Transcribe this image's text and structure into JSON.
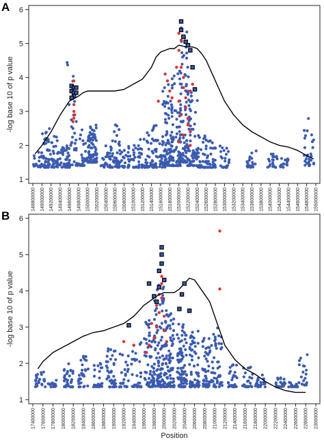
{
  "colors": {
    "snp": "#3a5bb0",
    "highlight": "#e03030",
    "line": "#000000",
    "axis": "#222222"
  },
  "chart_data": [
    {
      "panel": "A",
      "type": "scatter",
      "ylabel": "-log base 10 of p value",
      "xlabel": "",
      "ylim": [
        1,
        6
      ],
      "xlim": [
        148800000,
        155000000
      ],
      "yticks": [
        1,
        2,
        3,
        4,
        5,
        6
      ],
      "xticks": [
        "148800000",
        "149000000",
        "149200000",
        "149400000",
        "149600000",
        "149800000",
        "150000000",
        "150200000",
        "150400000",
        "150600000",
        "150800000",
        "151000000",
        "151200000",
        "151400000",
        "151600000",
        "151800000",
        "152000000",
        "152200000",
        "152400000",
        "152600000",
        "152800000",
        "153000000",
        "153200000",
        "153400000",
        "153600000",
        "153800000",
        "154000000",
        "154200000",
        "154400000",
        "154600000",
        "154800000",
        "155000000"
      ],
      "line": {
        "x": [
          148850000,
          149000000,
          149200000,
          149400000,
          149600000,
          149800000,
          149900000,
          150000000,
          150200000,
          150400000,
          150600000,
          150800000,
          151000000,
          151200000,
          151400000,
          151500000,
          151600000,
          151700000,
          151800000,
          151900000,
          152000000,
          152100000,
          152200000,
          152300000,
          152400000,
          152500000,
          152600000,
          152700000,
          152800000,
          152900000,
          153000000,
          153200000,
          153400000,
          153600000,
          153800000,
          154000000,
          154200000,
          154400000,
          154600000,
          154800000,
          154950000
        ],
        "y": [
          1.75,
          2.0,
          2.4,
          2.9,
          3.3,
          3.45,
          3.55,
          3.6,
          3.6,
          3.6,
          3.6,
          3.65,
          3.8,
          3.95,
          4.3,
          4.6,
          4.75,
          4.8,
          4.85,
          4.85,
          4.95,
          4.92,
          4.9,
          4.9,
          4.85,
          4.7,
          4.5,
          4.2,
          3.9,
          3.6,
          3.3,
          2.9,
          2.6,
          2.4,
          2.25,
          2.1,
          2.0,
          1.95,
          1.85,
          1.7,
          1.6
        ]
      },
      "clusters": [
        {
          "x": 148900000,
          "n": 20,
          "ymin": 1.35,
          "ymax": 1.8
        },
        {
          "x": 149100000,
          "n": 45,
          "ymin": 1.35,
          "ymax": 2.5
        },
        {
          "x": 149300000,
          "n": 30,
          "ymin": 1.35,
          "ymax": 2.3
        },
        {
          "x": 149500000,
          "n": 35,
          "ymin": 1.35,
          "ymax": 2.0
        },
        {
          "x": 149650000,
          "n": 30,
          "ymin": 1.4,
          "ymax": 4.5
        },
        {
          "x": 149850000,
          "n": 30,
          "ymin": 1.4,
          "ymax": 2.5
        },
        {
          "x": 150100000,
          "n": 90,
          "ymin": 1.5,
          "ymax": 2.6
        },
        {
          "x": 150400000,
          "n": 25,
          "ymin": 1.35,
          "ymax": 2.0
        },
        {
          "x": 150600000,
          "n": 40,
          "ymin": 1.35,
          "ymax": 2.7
        },
        {
          "x": 150800000,
          "n": 20,
          "ymin": 1.35,
          "ymax": 2.0
        },
        {
          "x": 151000000,
          "n": 25,
          "ymin": 1.35,
          "ymax": 2.1
        },
        {
          "x": 151200000,
          "n": 30,
          "ymin": 1.35,
          "ymax": 2.4
        },
        {
          "x": 151400000,
          "n": 40,
          "ymin": 1.35,
          "ymax": 2.7
        },
        {
          "x": 151600000,
          "n": 25,
          "ymin": 1.35,
          "ymax": 2.2
        },
        {
          "x": 151750000,
          "n": 80,
          "ymin": 1.4,
          "ymax": 4.0
        },
        {
          "x": 151950000,
          "n": 70,
          "ymin": 1.4,
          "ymax": 4.3
        },
        {
          "x": 152100000,
          "n": 90,
          "ymin": 1.5,
          "ymax": 5.5
        },
        {
          "x": 152300000,
          "n": 60,
          "ymin": 1.4,
          "ymax": 4.0
        },
        {
          "x": 152500000,
          "n": 35,
          "ymin": 1.35,
          "ymax": 2.3
        },
        {
          "x": 152700000,
          "n": 30,
          "ymin": 1.35,
          "ymax": 2.2
        },
        {
          "x": 153000000,
          "n": 25,
          "ymin": 1.35,
          "ymax": 2.0
        },
        {
          "x": 153600000,
          "n": 20,
          "ymin": 1.35,
          "ymax": 1.9
        },
        {
          "x": 154050000,
          "n": 20,
          "ymin": 1.35,
          "ymax": 1.8
        },
        {
          "x": 154300000,
          "n": 15,
          "ymin": 1.35,
          "ymax": 1.7
        },
        {
          "x": 154850000,
          "n": 30,
          "ymin": 1.4,
          "ymax": 2.8
        }
      ],
      "red_points": [
        {
          "x": 149700000,
          "y": 3.2
        },
        {
          "x": 149700000,
          "y": 3.0
        },
        {
          "x": 149700000,
          "y": 2.8
        },
        {
          "x": 149720000,
          "y": 2.9
        },
        {
          "x": 149680000,
          "y": 2.7
        },
        {
          "x": 149700000,
          "y": 3.9
        },
        {
          "x": 151700000,
          "y": 4.1
        },
        {
          "x": 151750000,
          "y": 3.9
        },
        {
          "x": 151800000,
          "y": 3.6
        },
        {
          "x": 151850000,
          "y": 3.4
        },
        {
          "x": 151550000,
          "y": 3.3
        },
        {
          "x": 152000000,
          "y": 5.3
        },
        {
          "x": 152050000,
          "y": 5.1
        },
        {
          "x": 152000000,
          "y": 4.8
        },
        {
          "x": 152050000,
          "y": 4.3
        },
        {
          "x": 152100000,
          "y": 4.0
        },
        {
          "x": 152100000,
          "y": 3.7
        },
        {
          "x": 152150000,
          "y": 3.4
        },
        {
          "x": 152150000,
          "y": 3.1
        },
        {
          "x": 152200000,
          "y": 2.8
        },
        {
          "x": 152200000,
          "y": 2.6
        },
        {
          "x": 152250000,
          "y": 2.4
        },
        {
          "x": 152250000,
          "y": 3.6
        },
        {
          "x": 152300000,
          "y": 3.8
        },
        {
          "x": 152100000,
          "y": 2.3
        },
        {
          "x": 152050000,
          "y": 2.9
        },
        {
          "x": 152000000,
          "y": 3.3
        },
        {
          "x": 151950000,
          "y": 4.3
        },
        {
          "x": 152000000,
          "y": 2.1
        },
        {
          "x": 152250000,
          "y": 2.0
        }
      ],
      "square_points": [
        {
          "x": 149650000,
          "y": 3.75
        },
        {
          "x": 149700000,
          "y": 3.7
        },
        {
          "x": 149750000,
          "y": 3.7
        },
        {
          "x": 149650000,
          "y": 3.6
        },
        {
          "x": 149700000,
          "y": 3.55
        },
        {
          "x": 149750000,
          "y": 3.55
        },
        {
          "x": 149700000,
          "y": 3.45
        },
        {
          "x": 149650000,
          "y": 3.4
        },
        {
          "x": 152050000,
          "y": 5.65
        },
        {
          "x": 152050000,
          "y": 5.4
        },
        {
          "x": 152100000,
          "y": 5.2
        },
        {
          "x": 152150000,
          "y": 5.05
        },
        {
          "x": 152200000,
          "y": 4.95
        },
        {
          "x": 152250000,
          "y": 4.8
        },
        {
          "x": 152300000,
          "y": 4.3
        },
        {
          "x": 152350000,
          "y": 3.65
        }
      ]
    },
    {
      "panel": "B",
      "type": "scatter",
      "ylabel": "-log base 10 of p value",
      "xlabel": "Position",
      "ylim": [
        1,
        6
      ],
      "xlim": [
        17400000,
        23000000
      ],
      "yticks": [
        1,
        2,
        3,
        4,
        5,
        6
      ],
      "xticks": [
        "17400000",
        "17600000",
        "17800000",
        "18000000",
        "18200000",
        "18400000",
        "18600000",
        "18800000",
        "19000000",
        "19200000",
        "19400000",
        "19600000",
        "19800000",
        "20000000",
        "20200000",
        "20400000",
        "20600000",
        "20800000",
        "21000000",
        "21200000",
        "21400000",
        "21600000",
        "21800000",
        "22000000",
        "22200000",
        "22400000",
        "22600000",
        "22800000",
        "23000000"
      ],
      "line": {
        "x": [
          17500000,
          17600000,
          17800000,
          18000000,
          18200000,
          18400000,
          18600000,
          18800000,
          19000000,
          19200000,
          19400000,
          19600000,
          19800000,
          19900000,
          20000000,
          20100000,
          20200000,
          20300000,
          20400000,
          20500000,
          20600000,
          20700000,
          20800000,
          20900000,
          21000000,
          21100000,
          21200000,
          21400000,
          21600000,
          21800000,
          22000000,
          22200000,
          22400000,
          22600000,
          22800000
        ],
        "y": [
          1.85,
          2.05,
          2.3,
          2.45,
          2.6,
          2.75,
          2.85,
          2.9,
          3.0,
          3.1,
          3.3,
          3.6,
          3.8,
          3.9,
          3.95,
          3.95,
          3.95,
          4.05,
          4.2,
          4.35,
          4.3,
          4.1,
          3.9,
          3.7,
          3.3,
          2.9,
          2.5,
          2.1,
          1.85,
          1.7,
          1.5,
          1.35,
          1.25,
          1.2,
          1.2
        ]
      },
      "clusters": [
        {
          "x": 17550000,
          "n": 25,
          "ymin": 1.35,
          "ymax": 1.8
        },
        {
          "x": 17800000,
          "n": 15,
          "ymin": 1.35,
          "ymax": 1.6
        },
        {
          "x": 18100000,
          "n": 35,
          "ymin": 1.35,
          "ymax": 2.0
        },
        {
          "x": 18400000,
          "n": 30,
          "ymin": 1.35,
          "ymax": 2.2
        },
        {
          "x": 18700000,
          "n": 25,
          "ymin": 1.35,
          "ymax": 2.0
        },
        {
          "x": 18950000,
          "n": 40,
          "ymin": 1.35,
          "ymax": 2.5
        },
        {
          "x": 19200000,
          "n": 25,
          "ymin": 1.35,
          "ymax": 2.3
        },
        {
          "x": 19450000,
          "n": 30,
          "ymin": 1.35,
          "ymax": 2.6
        },
        {
          "x": 19700000,
          "n": 60,
          "ymin": 1.35,
          "ymax": 3.2
        },
        {
          "x": 19900000,
          "n": 90,
          "ymin": 1.35,
          "ymax": 4.3
        },
        {
          "x": 20100000,
          "n": 90,
          "ymin": 1.35,
          "ymax": 3.5
        },
        {
          "x": 20350000,
          "n": 90,
          "ymin": 1.35,
          "ymax": 3.1
        },
        {
          "x": 20600000,
          "n": 60,
          "ymin": 1.35,
          "ymax": 2.9
        },
        {
          "x": 20850000,
          "n": 50,
          "ymin": 1.35,
          "ymax": 2.8
        },
        {
          "x": 21050000,
          "n": 45,
          "ymin": 1.35,
          "ymax": 3.0
        },
        {
          "x": 21350000,
          "n": 25,
          "ymin": 1.35,
          "ymax": 2.0
        },
        {
          "x": 21650000,
          "n": 25,
          "ymin": 1.35,
          "ymax": 1.9
        },
        {
          "x": 21900000,
          "n": 20,
          "ymin": 1.35,
          "ymax": 1.7
        },
        {
          "x": 22300000,
          "n": 20,
          "ymin": 1.35,
          "ymax": 1.6
        },
        {
          "x": 22550000,
          "n": 15,
          "ymin": 1.35,
          "ymax": 1.5
        },
        {
          "x": 22750000,
          "n": 20,
          "ymin": 1.4,
          "ymax": 2.25
        }
      ],
      "red_points": [
        {
          "x": 19200000,
          "y": 2.6
        },
        {
          "x": 19400000,
          "y": 2.5
        },
        {
          "x": 19750000,
          "y": 3.1
        },
        {
          "x": 19800000,
          "y": 2.7
        },
        {
          "x": 19850000,
          "y": 3.6
        },
        {
          "x": 19850000,
          "y": 3.0
        },
        {
          "x": 19900000,
          "y": 3.9
        },
        {
          "x": 19900000,
          "y": 3.4
        },
        {
          "x": 19950000,
          "y": 4.2
        },
        {
          "x": 19950000,
          "y": 4.4
        },
        {
          "x": 19950000,
          "y": 3.8
        },
        {
          "x": 20000000,
          "y": 3.3
        },
        {
          "x": 20000000,
          "y": 2.9
        },
        {
          "x": 19700000,
          "y": 2.5
        },
        {
          "x": 19650000,
          "y": 2.3
        },
        {
          "x": 20050000,
          "y": 2.6
        },
        {
          "x": 21100000,
          "y": 5.65
        },
        {
          "x": 21100000,
          "y": 4.05
        }
      ],
      "square_points": [
        {
          "x": 19300000,
          "y": 3.05
        },
        {
          "x": 19700000,
          "y": 4.2
        },
        {
          "x": 19800000,
          "y": 3.85
        },
        {
          "x": 19900000,
          "y": 4.55
        },
        {
          "x": 19950000,
          "y": 4.75
        },
        {
          "x": 19950000,
          "y": 5.0
        },
        {
          "x": 19950000,
          "y": 5.2
        },
        {
          "x": 19900000,
          "y": 4.1
        },
        {
          "x": 20000000,
          "y": 4.3
        },
        {
          "x": 19850000,
          "y": 3.7
        },
        {
          "x": 20350000,
          "y": 3.9
        },
        {
          "x": 20300000,
          "y": 3.5
        },
        {
          "x": 20400000,
          "y": 4.2
        },
        {
          "x": 20500000,
          "y": 3.45
        }
      ]
    }
  ]
}
